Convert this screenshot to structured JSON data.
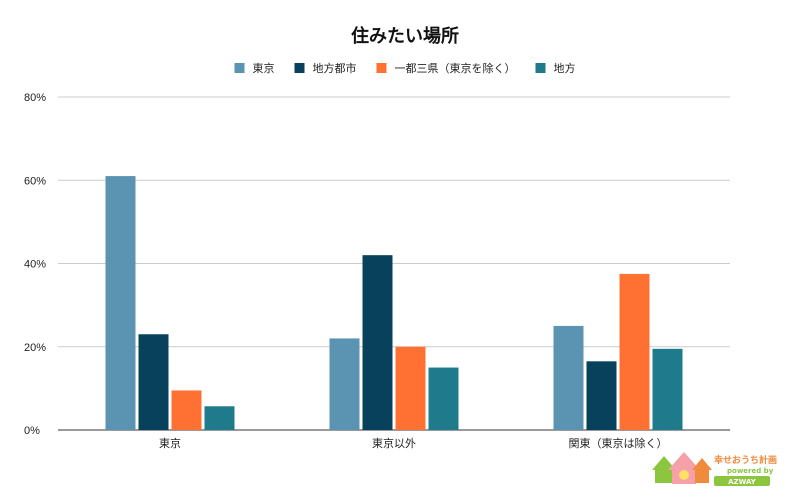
{
  "chart_data": {
    "type": "bar",
    "title": "住みたい場所",
    "categories": [
      "東京",
      "東京以外",
      "関東（東京は除く）"
    ],
    "series": [
      {
        "name": "東京",
        "color": "#5b93b3",
        "values": [
          61,
          22,
          25
        ]
      },
      {
        "name": "地方都市",
        "color": "#08415c",
        "values": [
          23,
          42,
          16.5
        ]
      },
      {
        "name": "一都三県（東京を除く）",
        "color": "#ff7133",
        "values": [
          9.5,
          20,
          37.5
        ]
      },
      {
        "name": "地方",
        "color": "#1f7a8c",
        "values": [
          5.7,
          15,
          19.5
        ]
      }
    ],
    "ylim": [
      0,
      80
    ],
    "yticks": [
      0,
      20,
      40,
      60,
      80
    ],
    "ytick_labels": [
      "0%",
      "20%",
      "40%",
      "60%",
      "80%"
    ],
    "grid": true,
    "legend": "top-center"
  },
  "logo": {
    "main": "幸せおうち計画",
    "sub": "powered by",
    "brand": "AZWAY"
  }
}
